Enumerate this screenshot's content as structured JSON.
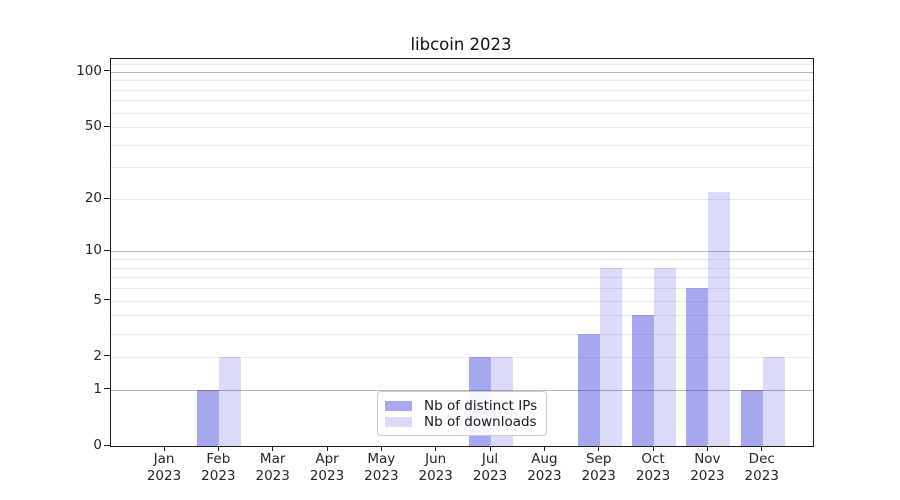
{
  "chart_data": {
    "type": "bar",
    "title": "libcoin 2023",
    "categories": [
      "Jan",
      "Feb",
      "Mar",
      "Apr",
      "May",
      "Jun",
      "Jul",
      "Aug",
      "Sep",
      "Oct",
      "Nov",
      "Dec"
    ],
    "category_year": "2023",
    "series": [
      {
        "name": "Nb of distinct IPs",
        "color": "rgba(0,0,215,0.34)",
        "values": [
          0,
          1,
          0,
          0,
          0,
          0,
          2,
          0,
          3,
          4,
          6,
          1
        ]
      },
      {
        "name": "Nb of downloads",
        "color": "rgba(0,0,215,0.14)",
        "values": [
          0,
          2,
          0,
          0,
          0,
          0,
          2,
          0,
          8,
          8,
          22,
          2
        ]
      }
    ],
    "yscale": "log1p",
    "ylim": [
      0,
      117
    ],
    "yticks": [
      0,
      1,
      2,
      5,
      10,
      20,
      50,
      100
    ],
    "grid_major": [
      1,
      10,
      100
    ],
    "grid_minor": [
      2,
      3,
      4,
      5,
      6,
      7,
      8,
      9,
      20,
      30,
      40,
      50,
      60,
      70,
      80,
      90,
      110
    ],
    "grid": true,
    "legend_position": "lower-center",
    "xlabel": "",
    "ylabel": ""
  }
}
